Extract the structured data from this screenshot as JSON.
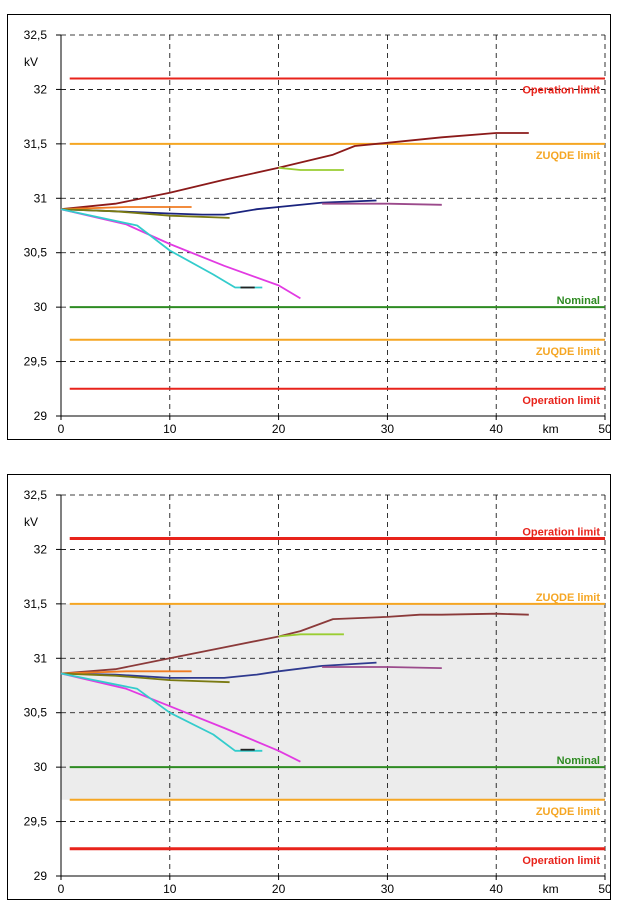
{
  "chart_data": [
    {
      "type": "line",
      "ylabel": "kV",
      "xlabel": "km",
      "xlim": [
        0,
        50
      ],
      "ylim": [
        29,
        32.5
      ],
      "x_ticks": [
        0,
        10,
        20,
        30,
        40,
        50
      ],
      "y_ticks": [
        "29",
        "29,5",
        "30",
        "30,5",
        "31",
        "31,5",
        "32",
        "32,5"
      ],
      "y_tick_values": [
        29,
        29.5,
        30,
        30.5,
        31,
        31.5,
        32,
        32.5
      ],
      "grid": true,
      "shaded_band": false,
      "reference_lines": [
        {
          "label": "Operation limit",
          "y": 32.1,
          "color": "#e8231b",
          "label_position": "below"
        },
        {
          "label": "ZUQDE limit",
          "y": 31.5,
          "color": "#f5a623",
          "label_position": "below"
        },
        {
          "label": "Nominal",
          "y": 30.0,
          "color": "#2e8b22",
          "label_position": "above"
        },
        {
          "label": "ZUQDE limit",
          "y": 29.7,
          "color": "#f5a623",
          "label_position": "below"
        },
        {
          "label": "Operation limit",
          "y": 29.25,
          "color": "#e8231b",
          "label_position": "below"
        }
      ],
      "series": [
        {
          "color": "#8b1a1a",
          "points": [
            [
              0,
              30.9
            ],
            [
              5,
              30.95
            ],
            [
              10,
              31.05
            ],
            [
              15,
              31.17
            ],
            [
              20,
              31.28
            ],
            [
              25,
              31.4
            ],
            [
              27,
              31.48
            ],
            [
              30,
              31.51
            ],
            [
              35,
              31.56
            ],
            [
              40,
              31.6
            ],
            [
              43,
              31.6
            ]
          ]
        },
        {
          "color": "#9acd32",
          "points": [
            [
              20,
              31.28
            ],
            [
              22,
              31.26
            ],
            [
              26,
              31.26
            ]
          ]
        },
        {
          "color": "#1a237e",
          "points": [
            [
              0,
              30.9
            ],
            [
              5,
              30.88
            ],
            [
              10,
              30.86
            ],
            [
              13,
              30.85
            ],
            [
              15,
              30.85
            ],
            [
              18,
              30.9
            ],
            [
              20,
              30.92
            ],
            [
              24,
              30.96
            ],
            [
              29,
              30.98
            ]
          ]
        },
        {
          "color": "#9b4a8b",
          "points": [
            [
              24,
              30.95
            ],
            [
              30,
              30.95
            ],
            [
              35,
              30.94
            ]
          ]
        },
        {
          "color": "#f07c22",
          "points": [
            [
              0,
              30.9
            ],
            [
              6,
              30.92
            ],
            [
              12,
              30.92
            ]
          ]
        },
        {
          "color": "#7a7a12",
          "points": [
            [
              0,
              30.9
            ],
            [
              5,
              30.88
            ],
            [
              10,
              30.84
            ],
            [
              15.5,
              30.82
            ]
          ]
        },
        {
          "color": "#e23ae2",
          "points": [
            [
              0,
              30.9
            ],
            [
              6,
              30.76
            ],
            [
              10,
              30.58
            ],
            [
              15,
              30.38
            ],
            [
              20,
              30.2
            ],
            [
              22,
              30.08
            ]
          ]
        },
        {
          "color": "#33cccc",
          "points": [
            [
              0,
              30.9
            ],
            [
              7,
              30.75
            ],
            [
              10,
              30.52
            ],
            [
              14,
              30.3
            ],
            [
              16,
              30.18
            ],
            [
              18.5,
              30.18
            ]
          ]
        },
        {
          "color": "#222222",
          "points": [
            [
              16.5,
              30.18
            ],
            [
              17.8,
              30.18
            ]
          ]
        }
      ]
    },
    {
      "type": "line",
      "ylabel": "kV",
      "xlabel": "km",
      "xlim": [
        0,
        50
      ],
      "ylim": [
        29,
        32.5
      ],
      "x_ticks": [
        0,
        10,
        20,
        30,
        40,
        50
      ],
      "y_ticks": [
        "29",
        "29,5",
        "30",
        "30,5",
        "31",
        "31,5",
        "32",
        "32,5"
      ],
      "y_tick_values": [
        29,
        29.5,
        30,
        30.5,
        31,
        31.5,
        32,
        32.5
      ],
      "grid": true,
      "shaded_band": true,
      "shaded_band_range": [
        29.7,
        31.5
      ],
      "reference_lines": [
        {
          "label": "Operation limit",
          "y": 32.1,
          "color": "#e8231b",
          "label_position": "above"
        },
        {
          "label": "ZUQDE limit",
          "y": 31.5,
          "color": "#f5a623",
          "label_position": "above"
        },
        {
          "label": "Nominal",
          "y": 30.0,
          "color": "#2e8b22",
          "label_position": "above"
        },
        {
          "label": "ZUQDE limit",
          "y": 29.7,
          "color": "#f5a623",
          "label_position": "below"
        },
        {
          "label": "Operation limit",
          "y": 29.25,
          "color": "#e8231b",
          "label_position": "below"
        }
      ],
      "series": [
        {
          "color": "#8b3a3a",
          "points": [
            [
              0,
              30.86
            ],
            [
              5,
              30.9
            ],
            [
              10,
              31.0
            ],
            [
              15,
              31.1
            ],
            [
              20,
              31.2
            ],
            [
              22,
              31.25
            ],
            [
              25,
              31.36
            ],
            [
              30,
              31.38
            ],
            [
              33,
              31.4
            ],
            [
              35,
              31.4
            ],
            [
              40,
              31.41
            ],
            [
              43,
              31.4
            ]
          ]
        },
        {
          "color": "#9acd32",
          "points": [
            [
              20,
              31.2
            ],
            [
              22,
              31.22
            ],
            [
              26,
              31.22
            ]
          ]
        },
        {
          "color": "#2f3a8f",
          "points": [
            [
              0,
              30.86
            ],
            [
              5,
              30.85
            ],
            [
              10,
              30.82
            ],
            [
              15,
              30.82
            ],
            [
              18,
              30.85
            ],
            [
              20,
              30.88
            ],
            [
              24,
              30.93
            ],
            [
              29,
              30.96
            ]
          ]
        },
        {
          "color": "#9b4a8b",
          "points": [
            [
              24,
              30.92
            ],
            [
              30,
              30.92
            ],
            [
              35,
              30.91
            ]
          ]
        },
        {
          "color": "#f07c22",
          "points": [
            [
              0,
              30.86
            ],
            [
              6,
              30.88
            ],
            [
              12,
              30.88
            ]
          ]
        },
        {
          "color": "#7a7a12",
          "points": [
            [
              0,
              30.86
            ],
            [
              5,
              30.84
            ],
            [
              10,
              30.8
            ],
            [
              15.5,
              30.78
            ]
          ]
        },
        {
          "color": "#e23ae2",
          "points": [
            [
              0,
              30.86
            ],
            [
              6,
              30.72
            ],
            [
              10,
              30.56
            ],
            [
              15,
              30.36
            ],
            [
              20,
              30.15
            ],
            [
              22,
              30.05
            ]
          ]
        },
        {
          "color": "#33cccc",
          "points": [
            [
              0,
              30.86
            ],
            [
              7,
              30.72
            ],
            [
              10,
              30.5
            ],
            [
              14,
              30.3
            ],
            [
              16,
              30.15
            ],
            [
              18.5,
              30.15
            ]
          ]
        },
        {
          "color": "#222222",
          "points": [
            [
              16.5,
              30.16
            ],
            [
              17.8,
              30.16
            ]
          ]
        }
      ]
    }
  ]
}
